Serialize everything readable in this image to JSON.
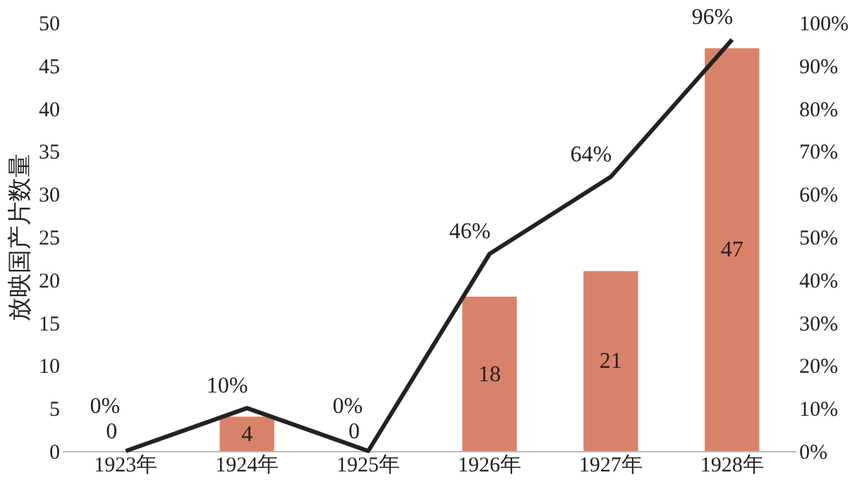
{
  "chart_data": {
    "type": "bar",
    "ylabel": "放映国产片数量",
    "categories": [
      "1923年",
      "1924年",
      "1925年",
      "1926年",
      "1927年",
      "1928年"
    ],
    "series": [
      {
        "color": "#d9826a",
        "values": [
          0,
          4,
          0,
          18,
          21,
          47
        ],
        "value_labels": [
          "0",
          "4",
          "0",
          "18",
          "21",
          "47"
        ]
      },
      {
        "type": "line",
        "axis": "y2",
        "color": "#222222",
        "values": [
          0,
          10,
          0,
          46,
          64,
          96
        ],
        "value_labels": [
          "0%",
          "10%",
          "0%",
          "46%",
          "64%",
          "96%"
        ]
      }
    ],
    "ylim": [
      0,
      50
    ],
    "yticks": [
      0,
      5,
      10,
      15,
      20,
      25,
      30,
      35,
      40,
      45,
      50
    ],
    "y2lim": [
      0,
      100
    ],
    "y2ticks": [
      {
        "value": 0,
        "label": "0%"
      },
      {
        "value": 10,
        "label": "10%"
      },
      {
        "value": 20,
        "label": "20%"
      },
      {
        "value": 30,
        "label": "30%"
      },
      {
        "value": 40,
        "label": "40%"
      },
      {
        "value": 50,
        "label": "50%"
      },
      {
        "value": 60,
        "label": "60%"
      },
      {
        "value": 70,
        "label": "70%"
      },
      {
        "value": 80,
        "label": "80%"
      },
      {
        "value": 90,
        "label": "90%"
      },
      {
        "value": 100,
        "label": "100%"
      }
    ],
    "grid": false,
    "marker": "none",
    "line_style": "solid"
  }
}
